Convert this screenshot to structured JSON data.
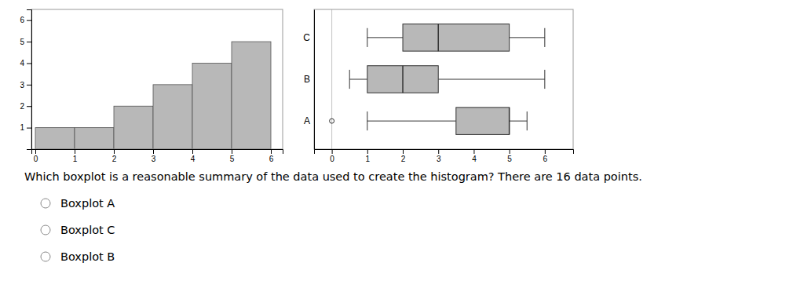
{
  "chart_data": [
    {
      "type": "histogram",
      "bins": [
        0,
        1,
        2,
        3,
        4,
        5,
        6
      ],
      "values": [
        1,
        1,
        2,
        3,
        4,
        5
      ],
      "color": "#b8b8b8",
      "xlim": [
        -0.1,
        6.3
      ],
      "xticks": [
        0,
        1,
        2,
        3,
        4,
        5,
        6
      ],
      "ylim": [
        0,
        6.5
      ],
      "yticks": [
        1,
        2,
        3,
        4,
        5,
        6
      ]
    },
    {
      "type": "box",
      "orientation": "horizontal",
      "categories": [
        "C",
        "B",
        "A"
      ],
      "whislo": [
        1.0,
        0.5,
        1.0
      ],
      "q1": [
        2.0,
        1.0,
        3.5
      ],
      "median": [
        3.0,
        2.0,
        5.0
      ],
      "q3": [
        5.0,
        3.0,
        5.0
      ],
      "whishi": [
        6.0,
        6.0,
        5.5
      ],
      "fliers": [
        [],
        [],
        [
          0.0
        ]
      ],
      "color": "#b8b8b8",
      "vline": 0,
      "xlim": [
        -0.5,
        6.8
      ],
      "xticks": [
        0,
        1,
        2,
        3,
        4,
        5,
        6
      ]
    }
  ],
  "question": "Which boxplot is a reasonable summary of the data used to create the histogram? There are 16 data points.",
  "choices": [
    "Boxplot A",
    "Boxplot C",
    "Boxplot B"
  ]
}
